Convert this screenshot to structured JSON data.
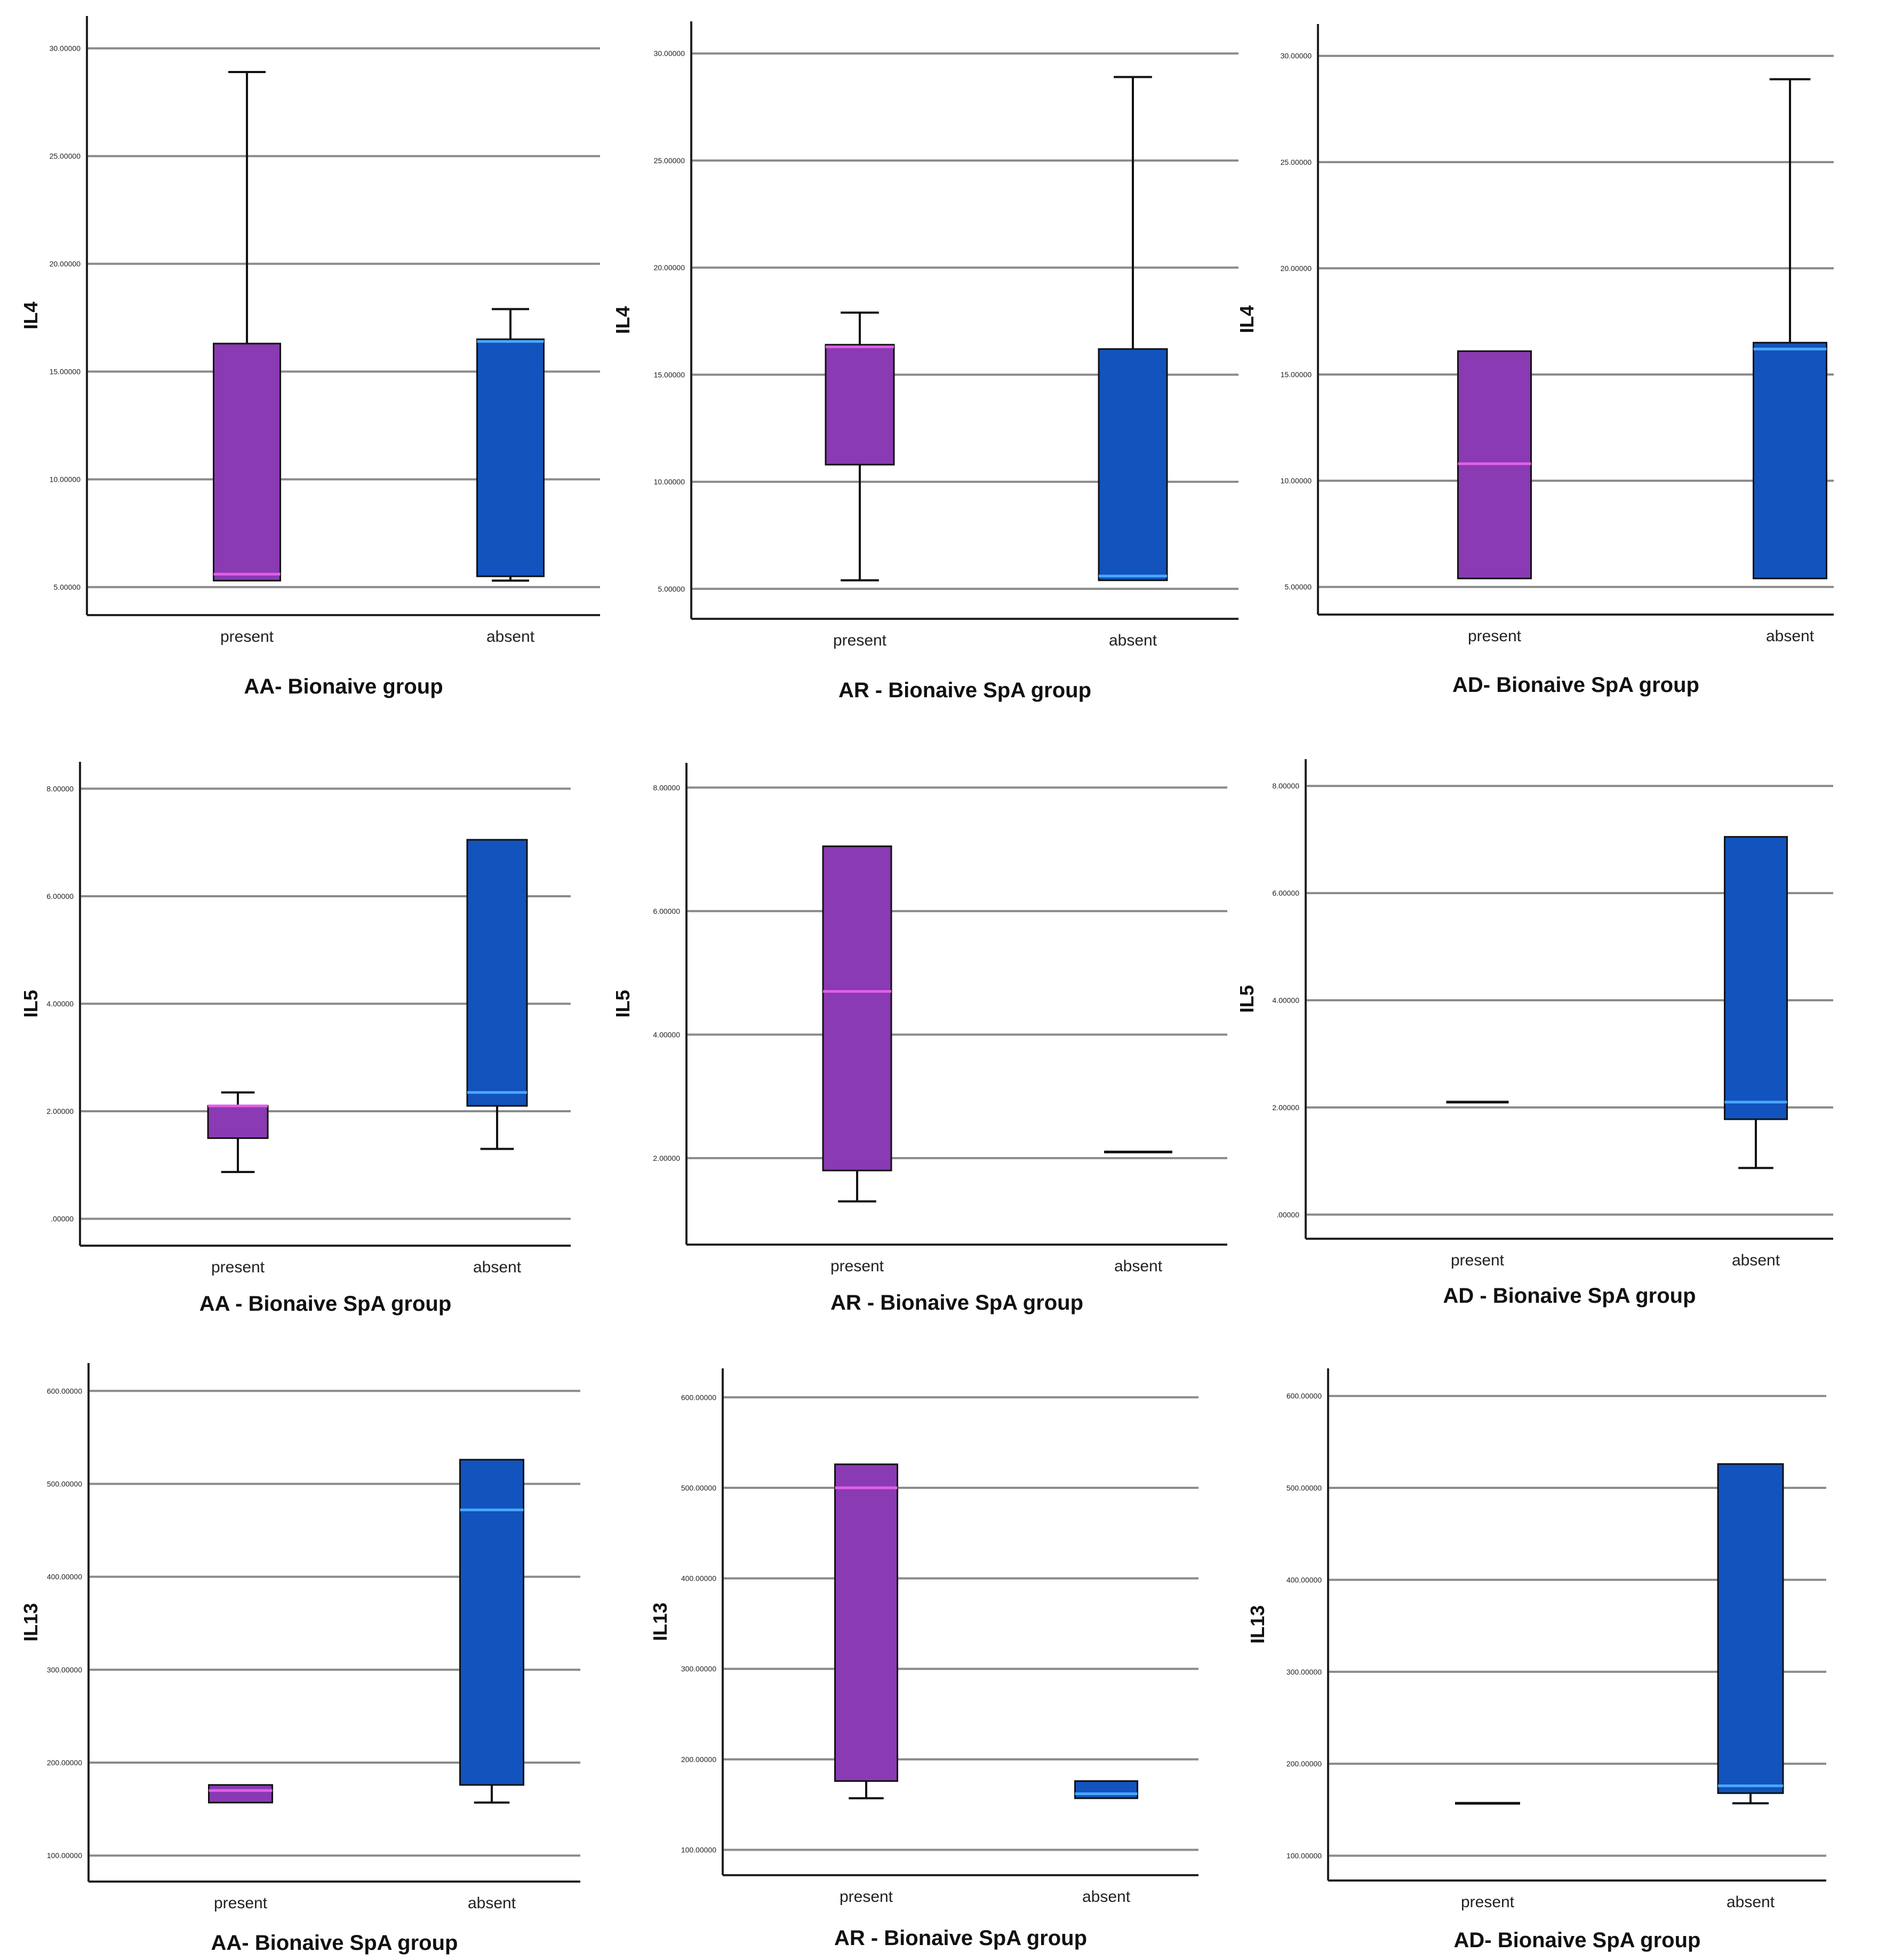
{
  "colors": {
    "present": "#8a3ab2",
    "absent": "#1253bd",
    "median_present": "#e060e8",
    "median_absent": "#4aa8ff",
    "grid": "#8a8a8a",
    "axis": "#222222"
  },
  "chart_data": [
    {
      "type": "box",
      "ylabel": "IL4",
      "xlabel": "AA- Bionaive group",
      "categories": [
        "present",
        "absent"
      ],
      "ylim": [
        3.7,
        31.5
      ],
      "yticks": [
        5,
        10,
        15,
        20,
        25,
        30
      ],
      "tick_labels": [
        "5.00000",
        "10.00000",
        "15.00000",
        "20.00000",
        "25.00000",
        "30.00000"
      ],
      "boxes": [
        {
          "min": 5.3,
          "q1": 5.3,
          "median": 5.6,
          "q3": 16.3,
          "max": 28.9
        },
        {
          "min": 5.3,
          "q1": 5.5,
          "median": 16.4,
          "q3": 16.5,
          "max": 17.9
        }
      ]
    },
    {
      "type": "box",
      "ylabel": "IL4",
      "xlabel": "AR - Bionaive SpA group",
      "categories": [
        "present",
        "absent"
      ],
      "ylim": [
        3.6,
        31.5
      ],
      "yticks": [
        5,
        10,
        15,
        20,
        25,
        30
      ],
      "tick_labels": [
        "5.00000",
        "10.00000",
        "15.00000",
        "20.00000",
        "25.00000",
        "30.00000"
      ],
      "boxes": [
        {
          "min": 5.4,
          "q1": 10.8,
          "median": 16.3,
          "q3": 16.4,
          "max": 17.9
        },
        {
          "min": 5.4,
          "q1": 5.4,
          "median": 5.6,
          "q3": 16.2,
          "max": 28.9
        }
      ]
    },
    {
      "type": "box",
      "ylabel": "IL4",
      "xlabel": "AD- Bionaive SpA group",
      "categories": [
        "present",
        "absent"
      ],
      "ylim": [
        3.7,
        31.5
      ],
      "yticks": [
        5,
        10,
        15,
        20,
        25,
        30
      ],
      "tick_labels": [
        "5.00000",
        "10.00000",
        "15.00000",
        "20.00000",
        "25.00000",
        "30.00000"
      ],
      "boxes": [
        {
          "min": 5.4,
          "q1": 5.4,
          "median": 10.8,
          "q3": 16.1,
          "max": 16.1
        },
        {
          "min": 5.4,
          "q1": 5.4,
          "median": 16.2,
          "q3": 16.5,
          "max": 28.9
        }
      ]
    },
    {
      "type": "box",
      "ylabel": "IL5",
      "xlabel": "AA - Bionaive SpA group",
      "categories": [
        "present",
        "absent"
      ],
      "ylim": [
        -0.5,
        8.5
      ],
      "yticks": [
        0,
        2,
        4,
        6,
        8
      ],
      "tick_labels": [
        ".00000",
        "2.00000",
        "4.00000",
        "6.00000",
        "8.00000"
      ],
      "boxes": [
        {
          "min": 0.87,
          "q1": 1.5,
          "median": 2.1,
          "q3": 2.1,
          "max": 2.35
        },
        {
          "min": 1.3,
          "q1": 2.1,
          "median": 2.35,
          "q3": 7.05,
          "max": 7.05
        }
      ]
    },
    {
      "type": "box",
      "ylabel": "IL5",
      "xlabel": "AR - Bionaive SpA group",
      "categories": [
        "present",
        "absent"
      ],
      "ylim": [
        0.6,
        8.4
      ],
      "yticks": [
        2,
        4,
        6,
        8
      ],
      "tick_labels": [
        "2.00000",
        "4.00000",
        "6.00000",
        "8.00000"
      ],
      "boxes": [
        {
          "min": 1.3,
          "q1": 1.8,
          "median": 4.7,
          "q3": 7.05,
          "max": 7.05
        },
        {
          "min": 2.1,
          "q1": 2.1,
          "median": 2.1,
          "q3": 2.1,
          "max": 2.1
        }
      ]
    },
    {
      "type": "box",
      "ylabel": "IL5",
      "xlabel": "AD - Bionaive SpA group",
      "categories": [
        "present",
        "absent"
      ],
      "ylim": [
        -0.45,
        8.5
      ],
      "yticks": [
        0,
        2,
        4,
        6,
        8
      ],
      "tick_labels": [
        ".00000",
        "2.00000",
        "4.00000",
        "6.00000",
        "8.00000"
      ],
      "boxes": [
        {
          "min": 2.1,
          "q1": 2.1,
          "median": 2.1,
          "q3": 2.1,
          "max": 2.1
        },
        {
          "min": 0.87,
          "q1": 1.78,
          "median": 2.1,
          "q3": 7.05,
          "max": 7.05
        }
      ]
    },
    {
      "type": "box",
      "ylabel": "IL13",
      "xlabel": "AA- Bionaive SpA group",
      "categories": [
        "present",
        "absent"
      ],
      "ylim": [
        72,
        630
      ],
      "yticks": [
        100,
        200,
        300,
        400,
        500,
        600
      ],
      "tick_labels": [
        "100.00000",
        "200.00000",
        "300.00000",
        "400.00000",
        "500.00000",
        "600.00000"
      ],
      "boxes": [
        {
          "min": 157,
          "q1": 157,
          "median": 170,
          "q3": 176,
          "max": 176
        },
        {
          "min": 157,
          "q1": 176,
          "median": 472,
          "q3": 526,
          "max": 526
        }
      ]
    },
    {
      "type": "box",
      "ylabel": "IL13",
      "xlabel": "AR - Bionaive SpA group",
      "categories": [
        "present",
        "absent"
      ],
      "ylim": [
        72,
        632
      ],
      "yticks": [
        100,
        200,
        300,
        400,
        500,
        600
      ],
      "tick_labels": [
        "100.00000",
        "200.00000",
        "300.00000",
        "400.00000",
        "500.00000",
        "600.00000"
      ],
      "boxes": [
        {
          "min": 157,
          "q1": 176,
          "median": 500,
          "q3": 526,
          "max": 526
        },
        {
          "min": 157,
          "q1": 157,
          "median": 162,
          "q3": 176,
          "max": 176
        }
      ]
    },
    {
      "type": "box",
      "ylabel": "IL13",
      "xlabel": "AD- Bionaive SpA group",
      "categories": [
        "present",
        "absent"
      ],
      "ylim": [
        73,
        630
      ],
      "yticks": [
        100,
        200,
        300,
        400,
        500,
        600
      ],
      "tick_labels": [
        "100.00000",
        "200.00000",
        "300.00000",
        "400.00000",
        "500.00000",
        "600.00000"
      ],
      "boxes": [
        {
          "min": 157,
          "q1": 157,
          "median": 157,
          "q3": 157,
          "max": 157
        },
        {
          "min": 157,
          "q1": 168,
          "median": 176,
          "q3": 526,
          "max": 526
        }
      ]
    }
  ]
}
